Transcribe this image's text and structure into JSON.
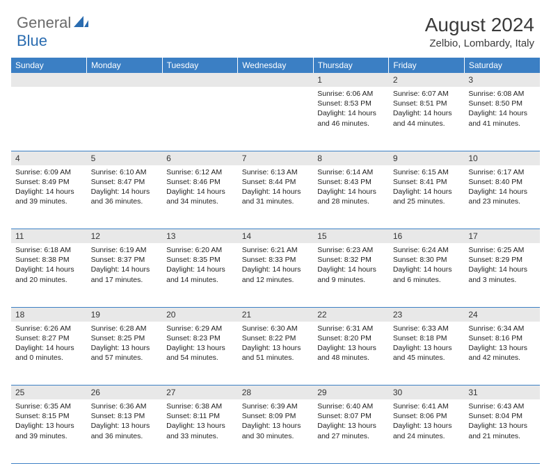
{
  "logo": {
    "text1": "General",
    "text2": "Blue"
  },
  "title": "August 2024",
  "location": "Zelbio, Lombardy, Italy",
  "colors": {
    "header_bg": "#3b7fc4",
    "header_text": "#ffffff",
    "daynum_bg": "#e8e8e8",
    "border": "#3b7fc4",
    "logo_gray": "#6a6a6a",
    "logo_blue": "#2a6cb0"
  },
  "day_headers": [
    "Sunday",
    "Monday",
    "Tuesday",
    "Wednesday",
    "Thursday",
    "Friday",
    "Saturday"
  ],
  "weeks": [
    {
      "nums": [
        "",
        "",
        "",
        "",
        "1",
        "2",
        "3"
      ],
      "cells": [
        null,
        null,
        null,
        null,
        {
          "sunrise": "6:06 AM",
          "sunset": "8:53 PM",
          "daylight": "14 hours and 46 minutes."
        },
        {
          "sunrise": "6:07 AM",
          "sunset": "8:51 PM",
          "daylight": "14 hours and 44 minutes."
        },
        {
          "sunrise": "6:08 AM",
          "sunset": "8:50 PM",
          "daylight": "14 hours and 41 minutes."
        }
      ]
    },
    {
      "nums": [
        "4",
        "5",
        "6",
        "7",
        "8",
        "9",
        "10"
      ],
      "cells": [
        {
          "sunrise": "6:09 AM",
          "sunset": "8:49 PM",
          "daylight": "14 hours and 39 minutes."
        },
        {
          "sunrise": "6:10 AM",
          "sunset": "8:47 PM",
          "daylight": "14 hours and 36 minutes."
        },
        {
          "sunrise": "6:12 AM",
          "sunset": "8:46 PM",
          "daylight": "14 hours and 34 minutes."
        },
        {
          "sunrise": "6:13 AM",
          "sunset": "8:44 PM",
          "daylight": "14 hours and 31 minutes."
        },
        {
          "sunrise": "6:14 AM",
          "sunset": "8:43 PM",
          "daylight": "14 hours and 28 minutes."
        },
        {
          "sunrise": "6:15 AM",
          "sunset": "8:41 PM",
          "daylight": "14 hours and 25 minutes."
        },
        {
          "sunrise": "6:17 AM",
          "sunset": "8:40 PM",
          "daylight": "14 hours and 23 minutes."
        }
      ]
    },
    {
      "nums": [
        "11",
        "12",
        "13",
        "14",
        "15",
        "16",
        "17"
      ],
      "cells": [
        {
          "sunrise": "6:18 AM",
          "sunset": "8:38 PM",
          "daylight": "14 hours and 20 minutes."
        },
        {
          "sunrise": "6:19 AM",
          "sunset": "8:37 PM",
          "daylight": "14 hours and 17 minutes."
        },
        {
          "sunrise": "6:20 AM",
          "sunset": "8:35 PM",
          "daylight": "14 hours and 14 minutes."
        },
        {
          "sunrise": "6:21 AM",
          "sunset": "8:33 PM",
          "daylight": "14 hours and 12 minutes."
        },
        {
          "sunrise": "6:23 AM",
          "sunset": "8:32 PM",
          "daylight": "14 hours and 9 minutes."
        },
        {
          "sunrise": "6:24 AM",
          "sunset": "8:30 PM",
          "daylight": "14 hours and 6 minutes."
        },
        {
          "sunrise": "6:25 AM",
          "sunset": "8:29 PM",
          "daylight": "14 hours and 3 minutes."
        }
      ]
    },
    {
      "nums": [
        "18",
        "19",
        "20",
        "21",
        "22",
        "23",
        "24"
      ],
      "cells": [
        {
          "sunrise": "6:26 AM",
          "sunset": "8:27 PM",
          "daylight": "14 hours and 0 minutes."
        },
        {
          "sunrise": "6:28 AM",
          "sunset": "8:25 PM",
          "daylight": "13 hours and 57 minutes."
        },
        {
          "sunrise": "6:29 AM",
          "sunset": "8:23 PM",
          "daylight": "13 hours and 54 minutes."
        },
        {
          "sunrise": "6:30 AM",
          "sunset": "8:22 PM",
          "daylight": "13 hours and 51 minutes."
        },
        {
          "sunrise": "6:31 AM",
          "sunset": "8:20 PM",
          "daylight": "13 hours and 48 minutes."
        },
        {
          "sunrise": "6:33 AM",
          "sunset": "8:18 PM",
          "daylight": "13 hours and 45 minutes."
        },
        {
          "sunrise": "6:34 AM",
          "sunset": "8:16 PM",
          "daylight": "13 hours and 42 minutes."
        }
      ]
    },
    {
      "nums": [
        "25",
        "26",
        "27",
        "28",
        "29",
        "30",
        "31"
      ],
      "cells": [
        {
          "sunrise": "6:35 AM",
          "sunset": "8:15 PM",
          "daylight": "13 hours and 39 minutes."
        },
        {
          "sunrise": "6:36 AM",
          "sunset": "8:13 PM",
          "daylight": "13 hours and 36 minutes."
        },
        {
          "sunrise": "6:38 AM",
          "sunset": "8:11 PM",
          "daylight": "13 hours and 33 minutes."
        },
        {
          "sunrise": "6:39 AM",
          "sunset": "8:09 PM",
          "daylight": "13 hours and 30 minutes."
        },
        {
          "sunrise": "6:40 AM",
          "sunset": "8:07 PM",
          "daylight": "13 hours and 27 minutes."
        },
        {
          "sunrise": "6:41 AM",
          "sunset": "8:06 PM",
          "daylight": "13 hours and 24 minutes."
        },
        {
          "sunrise": "6:43 AM",
          "sunset": "8:04 PM",
          "daylight": "13 hours and 21 minutes."
        }
      ]
    }
  ],
  "labels": {
    "sunrise": "Sunrise:",
    "sunset": "Sunset:",
    "daylight": "Daylight:"
  }
}
